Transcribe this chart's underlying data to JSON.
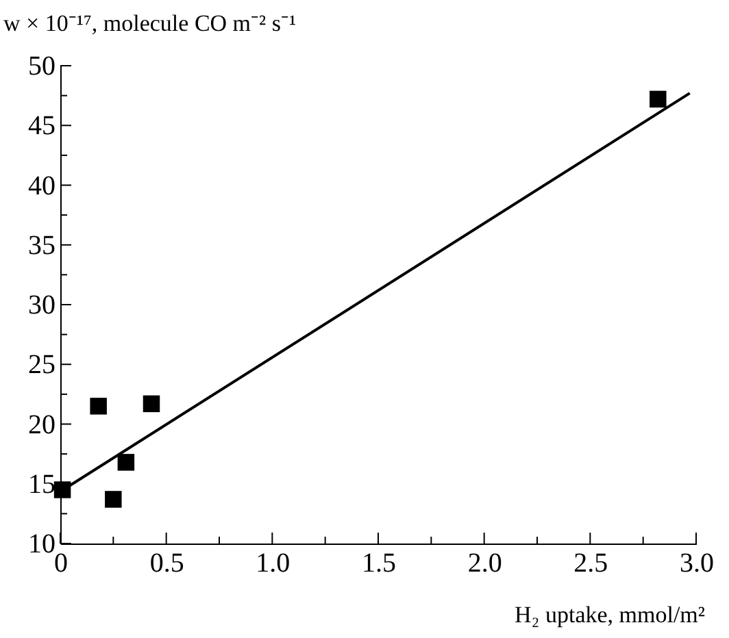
{
  "chart_data": {
    "type": "scatter",
    "xlabel": "H₂ uptake, mmol/m²",
    "ylabel": "w × 10⁻¹⁷, molecule CO m⁻² s⁻¹",
    "series": [
      {
        "color": "#000000",
        "marker": "square",
        "x": [
          0.01,
          0.18,
          0.25,
          0.31,
          0.43,
          2.82
        ],
        "values": [
          14.5,
          21.5,
          13.7,
          16.8,
          21.7,
          47.2
        ]
      },
      {
        "type": "line",
        "color": "#000000",
        "line_style": "solid",
        "x": [
          0.04,
          2.97
        ],
        "values": [
          14.8,
          47.7
        ]
      }
    ],
    "xlim": [
      0,
      3.0
    ],
    "ylim": [
      10,
      50
    ],
    "xticks": [
      0,
      {
        "value": 0.25,
        "label": null
      },
      {
        "value": 0.5,
        "label": "0.5"
      },
      {
        "value": 0.75,
        "label": null
      },
      {
        "value": 1,
        "label": "1.0"
      },
      {
        "value": 1.25,
        "label": null
      },
      {
        "value": 1.5,
        "label": "1.5"
      },
      {
        "value": 1.75,
        "label": null
      },
      {
        "value": 2,
        "label": "2.0"
      },
      {
        "value": 2.25,
        "label": null
      },
      {
        "value": 2.5,
        "label": "2.5"
      },
      {
        "value": 2.75,
        "label": null
      },
      {
        "value": 3,
        "label": "3.0"
      }
    ],
    "yticks": [
      10,
      {
        "value": 12.5,
        "label": null
      },
      15,
      {
        "value": 17.5,
        "label": null
      },
      20,
      {
        "value": 22.5,
        "label": null
      },
      25,
      {
        "value": 27.5,
        "label": null
      },
      30,
      {
        "value": 32.5,
        "label": null
      },
      35,
      {
        "value": 37.5,
        "label": null
      },
      40,
      {
        "value": 42.5,
        "label": null
      },
      45,
      {
        "value": 47.5,
        "label": null
      },
      50
    ],
    "grid": false
  }
}
